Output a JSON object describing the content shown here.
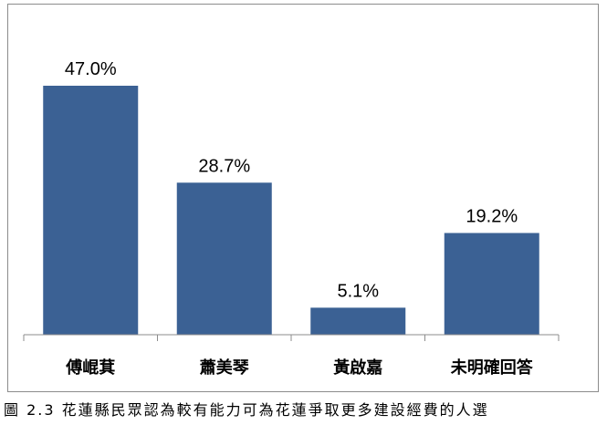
{
  "chart_data": {
    "type": "bar",
    "categories": [
      "傅崐萁",
      "蕭美琴",
      "黃啟嘉",
      "未明確回答"
    ],
    "values": [
      47.0,
      28.7,
      5.1,
      19.2
    ],
    "value_labels": [
      "47.0%",
      "28.7%",
      "5.1%",
      "19.2%"
    ],
    "ylim": [
      0,
      50
    ],
    "grid": false,
    "bar_color": "#3B6194"
  },
  "caption": "圖 2.3  花蓮縣民眾認為較有能力可為花蓮爭取更多建設經費的人選"
}
